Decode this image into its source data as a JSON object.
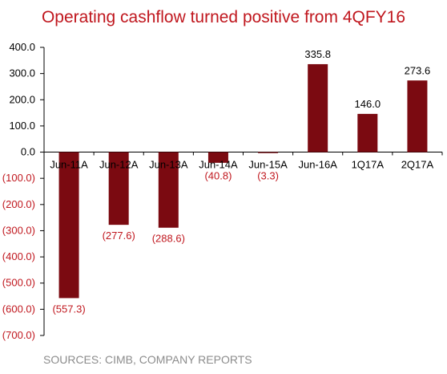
{
  "chart_data": {
    "type": "bar",
    "title": "Operating cashflow turned positive from 4QFY16",
    "source": "SOURCES: CIMB, COMPANY REPORTS",
    "categories": [
      "Jun-11A",
      "Jun-12A",
      "Jun-13A",
      "Jun-14A",
      "Jun-15A",
      "Jun-16A",
      "1Q17A",
      "2Q17A"
    ],
    "values": [
      -557.3,
      -277.6,
      -288.6,
      -40.8,
      -3.3,
      335.8,
      146.0,
      273.6
    ],
    "data_labels": [
      "(557.3)",
      "(277.6)",
      "(288.6)",
      "(40.8)",
      "(3.3)",
      "335.8",
      "146.0",
      "273.6"
    ],
    "yticks": [
      400,
      300,
      200,
      100,
      0,
      -100,
      -200,
      -300,
      -400,
      -500,
      -600,
      -700
    ],
    "ytick_labels": [
      "400.0",
      "300.0",
      "200.0",
      "100.0",
      "0.0",
      "(100.0)",
      "(200.0)",
      "(300.0)",
      "(400.0)",
      "(500.0)",
      "(600.0)",
      "(700.0)"
    ],
    "ylim": [
      -700,
      400
    ],
    "xlabel": "",
    "ylabel": "",
    "grid": false,
    "colors": {
      "bar": "#7b0a11",
      "title": "#c0171e",
      "negative_label": "#c0171e",
      "positive_label": "#000000",
      "source": "#8c8c8c"
    }
  }
}
